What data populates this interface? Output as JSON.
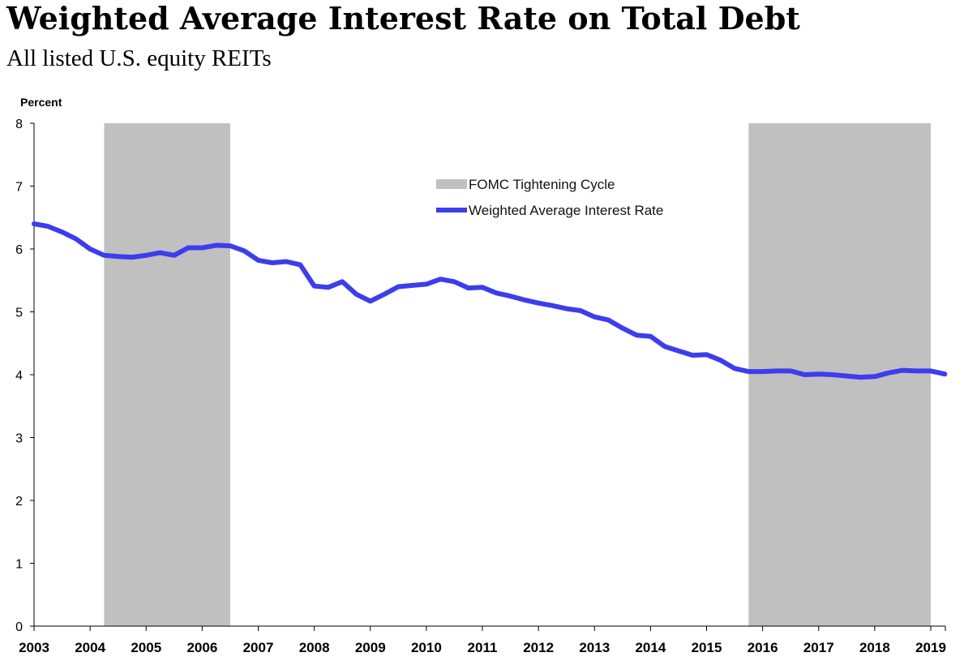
{
  "chart_data": {
    "type": "line",
    "title": "Weighted Average Interest Rate on Total Debt",
    "subtitle": "All listed U.S. equity REITs",
    "ylabel": "Percent",
    "xlabel": "",
    "xlim": [
      2003,
      2019.25
    ],
    "ylim": [
      0,
      8
    ],
    "yticks": [
      0,
      1,
      2,
      3,
      4,
      5,
      6,
      7,
      8
    ],
    "xticks": [
      2003,
      2004,
      2005,
      2006,
      2007,
      2008,
      2009,
      2010,
      2011,
      2012,
      2013,
      2014,
      2015,
      2016,
      2017,
      2018,
      2019
    ],
    "grid": false,
    "legend_position": "top-center",
    "shaded_periods": {
      "name": "FOMC Tightening Cycle",
      "color": "#c0c0c0",
      "periods": [
        [
          2004.25,
          2006.5
        ],
        [
          2015.75,
          2019.0
        ]
      ]
    },
    "series": [
      {
        "name": "Weighted Average Interest Rate",
        "color": "#3d3ded",
        "x": [
          2003.0,
          2003.25,
          2003.5,
          2003.75,
          2004.0,
          2004.25,
          2004.5,
          2004.75,
          2005.0,
          2005.25,
          2005.5,
          2005.75,
          2006.0,
          2006.25,
          2006.5,
          2006.75,
          2007.0,
          2007.25,
          2007.5,
          2007.75,
          2008.0,
          2008.25,
          2008.5,
          2008.75,
          2009.0,
          2009.25,
          2009.5,
          2009.75,
          2010.0,
          2010.25,
          2010.5,
          2010.75,
          2011.0,
          2011.25,
          2011.5,
          2011.75,
          2012.0,
          2012.25,
          2012.5,
          2012.75,
          2013.0,
          2013.25,
          2013.5,
          2013.75,
          2014.0,
          2014.25,
          2014.5,
          2014.75,
          2015.0,
          2015.25,
          2015.5,
          2015.75,
          2016.0,
          2016.25,
          2016.5,
          2016.75,
          2017.0,
          2017.25,
          2017.5,
          2017.75,
          2018.0,
          2018.25,
          2018.5,
          2018.75,
          2019.0,
          2019.25
        ],
        "values": [
          6.4,
          6.36,
          6.27,
          6.16,
          6.0,
          5.9,
          5.88,
          5.87,
          5.9,
          5.94,
          5.9,
          6.02,
          6.02,
          6.06,
          6.05,
          5.97,
          5.82,
          5.78,
          5.8,
          5.75,
          5.41,
          5.39,
          5.48,
          5.28,
          5.17,
          5.28,
          5.4,
          5.42,
          5.44,
          5.52,
          5.48,
          5.38,
          5.39,
          5.3,
          5.25,
          5.19,
          5.14,
          5.1,
          5.05,
          5.02,
          4.92,
          4.87,
          4.74,
          4.63,
          4.61,
          4.45,
          4.38,
          4.31,
          4.32,
          4.23,
          4.1,
          4.05,
          4.05,
          4.06,
          4.06,
          4.0,
          4.01,
          4.0,
          3.98,
          3.96,
          3.97,
          4.03,
          4.07,
          4.06,
          4.06,
          4.01
        ]
      }
    ]
  }
}
